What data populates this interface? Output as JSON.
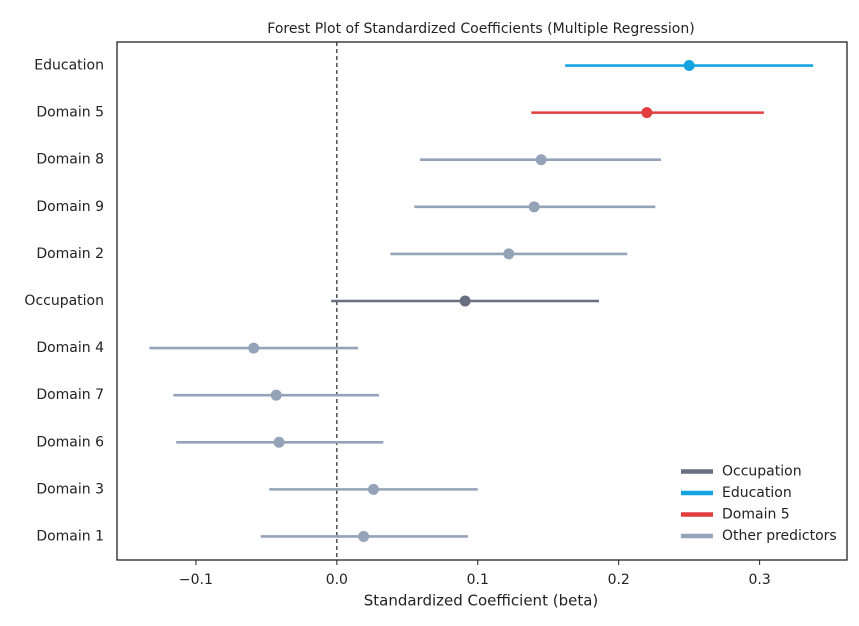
{
  "chart_data": {
    "type": "forest",
    "title": "Forest Plot of Standardized Coefficients (Multiple Regression)",
    "xlabel": "Standardized Coefficient (beta)",
    "categories": [
      "Education",
      "Domain 5",
      "Domain 8",
      "Domain 9",
      "Domain 2",
      "Occupation",
      "Domain 4",
      "Domain 7",
      "Domain 6",
      "Domain 3",
      "Domain 1"
    ],
    "values": [
      0.25,
      0.22,
      0.145,
      0.14,
      0.122,
      0.091,
      -0.059,
      -0.043,
      -0.041,
      0.026,
      0.019
    ],
    "lower": [
      0.162,
      0.138,
      0.059,
      0.055,
      0.038,
      -0.004,
      -0.133,
      -0.116,
      -0.114,
      -0.048,
      -0.054
    ],
    "upper": [
      0.338,
      0.303,
      0.23,
      0.226,
      0.206,
      0.186,
      0.015,
      0.03,
      0.033,
      0.1,
      0.093
    ],
    "colors": [
      "#16a3e2",
      "#e23e3e",
      "#94a3b8",
      "#94a3b8",
      "#94a3b8",
      "#676f80",
      "#94a3b8",
      "#94a3b8",
      "#94a3b8",
      "#94a3b8",
      "#94a3b8"
    ],
    "legend": [
      {
        "name": "Occupation",
        "color": "#676f80"
      },
      {
        "name": "Education",
        "color": "#16a3e2"
      },
      {
        "name": "Domain 5",
        "color": "#e23e3e"
      },
      {
        "name": "Other predictors",
        "color": "#94a3b8"
      }
    ],
    "legend_position": "lower right",
    "reference_line": 0,
    "xlim": [
      -0.156,
      0.362
    ],
    "xticks": [
      {
        "value": -0.1,
        "label": "−0.1"
      },
      {
        "value": 0,
        "label": "0.0"
      },
      0.1,
      0.2,
      0.3
    ]
  }
}
